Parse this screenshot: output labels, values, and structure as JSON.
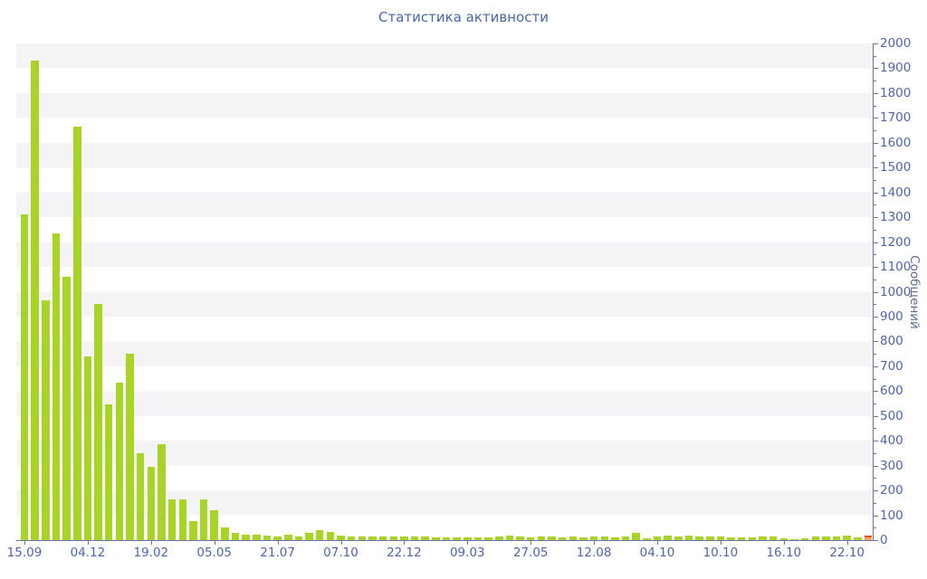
{
  "title": "Статистика активности",
  "colors": {
    "title": "#4767a6",
    "tick_label": "#4d66ae",
    "axis_line": "#6a76a2",
    "axis_title": "#5e6d92",
    "bar": "#a8d428",
    "last_bar_fill": "#f7a45c",
    "last_bar_border": "#ef4e22",
    "band_gray": "#f4f4f6",
    "band_white": "#ffffff"
  },
  "chart_data": {
    "type": "bar",
    "title": "Статистика активности",
    "xlabel": "",
    "ylabel": "Сообщений",
    "ylim": [
      0,
      2000
    ],
    "y_major_step": 100,
    "y_minor_step": 50,
    "y_tick_labels": [
      "0",
      "100",
      "200",
      "300",
      "400",
      "500",
      "600",
      "700",
      "800",
      "900",
      "1000",
      "1100",
      "1200",
      "1300",
      "1400",
      "1500",
      "1600",
      "1700",
      "1800",
      "1900",
      "2000"
    ],
    "x_tick_labels": [
      "15.09",
      "04.12",
      "19.02",
      "05.05",
      "21.07",
      "07.10",
      "22.12",
      "09.03",
      "27.05",
      "12.08",
      "04.10",
      "10.10",
      "16.10",
      "22.10"
    ],
    "x_tick_every_n_bars": 6,
    "grid": "alternating horizontal 100-unit bands",
    "legend_position": "none",
    "values": [
      1310,
      1930,
      965,
      1235,
      1060,
      1665,
      740,
      950,
      545,
      635,
      750,
      350,
      295,
      385,
      165,
      165,
      75,
      165,
      120,
      52,
      28,
      22,
      21,
      19,
      16,
      21,
      14,
      30,
      40,
      34,
      18,
      15,
      15,
      14,
      14,
      16,
      14,
      13,
      14,
      12,
      10,
      12,
      11,
      10,
      12,
      13,
      20,
      13,
      12,
      13,
      14,
      12,
      13,
      12,
      14,
      13,
      12,
      13,
      28,
      6,
      16,
      18,
      15,
      17,
      13,
      14,
      13,
      10,
      11,
      10,
      14,
      13,
      6,
      4,
      9,
      14,
      16,
      15,
      17,
      12,
      20
    ],
    "highlight_last_bar": true
  }
}
